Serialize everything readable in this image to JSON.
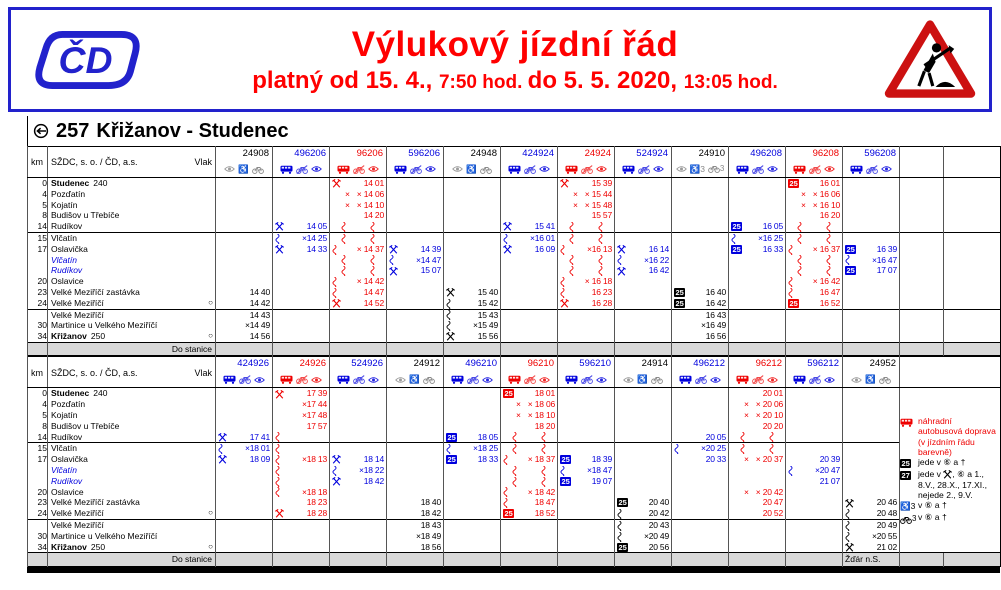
{
  "colors": {
    "black": "#000000",
    "blue": "#0000dd",
    "red": "#ee0000",
    "gray_icons": "#8a8a8a",
    "title_red": "#ff0000",
    "brand_blue": "#2222cc",
    "sign_red": "#cc1111"
  },
  "header": {
    "logo_text": "ČD",
    "title": "Výlukový jízdní řád",
    "validity": [
      {
        "text": "platný od 15. 4., ",
        "size": "lg"
      },
      {
        "text": "7:50 hod. ",
        "size": "sm"
      },
      {
        "text": "do 5. 5. 2020, ",
        "size": "lg"
      },
      {
        "text": "13:05 hod.",
        "size": "sm"
      }
    ]
  },
  "line": {
    "number": "257",
    "name": "Křižanov - Studenec"
  },
  "table_labels": {
    "operator": "SŽDC, s. o. / ČD, a.s.",
    "train": "Vlak",
    "km": "km",
    "to_station": "Do stanice"
  },
  "stations": [
    {
      "km": "0",
      "name": "Studenec",
      "suffix": "240",
      "bold": true
    },
    {
      "km": "4",
      "name": "Pozďatín"
    },
    {
      "km": "5",
      "name": "Kojatín"
    },
    {
      "km": "8",
      "name": "Budišov u Třebíče"
    },
    {
      "km": "14",
      "name": "Rudíkov",
      "sep_after": true
    },
    {
      "km": "15",
      "name": "Vlčatín"
    },
    {
      "km": "17",
      "name": "Oslavička"
    },
    {
      "km": "",
      "name": "Vlčatín",
      "italic": true
    },
    {
      "km": "",
      "name": "Rudíkov",
      "italic": true
    },
    {
      "km": "20",
      "name": "Oslavice"
    },
    {
      "km": "23",
      "name": "Velké Meziříčí zastávka"
    },
    {
      "km": "24",
      "name": "Velké Meziříčí",
      "circle": true,
      "sep_after": true
    },
    {
      "km": "",
      "name": "Velké Meziříčí"
    },
    {
      "km": "30",
      "name": "Martinice u Velkého Meziříčí"
    },
    {
      "km": "34",
      "name": "Křižanov",
      "suffix": "250",
      "bold": true,
      "circle": true
    }
  ],
  "sections": [
    {
      "trains": [
        {
          "num": "24908",
          "color": "black",
          "icons": [
            "eye",
            "wheelchair",
            "bike"
          ],
          "stops": [
            [
              10,
              "",
              "14 40"
            ],
            [
              11,
              "",
              "14 42"
            ],
            [
              12,
              "",
              "14 43"
            ],
            [
              13,
              "",
              "×14 49"
            ],
            [
              14,
              "",
              "14 56"
            ]
          ]
        },
        {
          "num": "496206",
          "color": "blue",
          "icons": [
            "bus",
            "no-bike",
            "eye"
          ],
          "stops": [
            [
              4,
              "H",
              "14 05"
            ],
            [
              5,
              "w",
              "×14 25"
            ],
            [
              6,
              "H",
              "14 33"
            ]
          ]
        },
        {
          "num": "96206",
          "color": "red",
          "icons": [
            "bus",
            "no-bike",
            "eye"
          ],
          "stops": [
            [
              0,
              "H",
              "14 01"
            ],
            [
              1,
              "x",
              "14 06"
            ],
            [
              2,
              "x",
              "14 10"
            ],
            [
              3,
              "",
              "14 20"
            ],
            [
              4,
              "W",
              ""
            ],
            [
              5,
              "W",
              ""
            ],
            [
              6,
              "wx",
              "14 37"
            ],
            [
              7,
              "W",
              ""
            ],
            [
              8,
              "W",
              ""
            ],
            [
              9,
              "wx",
              "14 42"
            ],
            [
              10,
              "w",
              "14 47"
            ],
            [
              11,
              "H",
              "14 52"
            ]
          ]
        },
        {
          "num": "596206",
          "color": "blue",
          "icons": [
            "bus",
            "no-bike",
            "eye"
          ],
          "stops": [
            [
              6,
              "H",
              "14 39"
            ],
            [
              7,
              "w",
              "×14 47"
            ],
            [
              8,
              "H",
              "15 07"
            ]
          ]
        },
        {
          "num": "24948",
          "color": "black",
          "icons": [
            "eye",
            "wheelchair",
            "bike"
          ],
          "stops": [
            [
              10,
              "H",
              "15 40"
            ],
            [
              11,
              "w",
              "15 42"
            ],
            [
              12,
              "w",
              "15 43"
            ],
            [
              13,
              "w",
              "×15 49"
            ],
            [
              14,
              "H",
              "15 56"
            ]
          ]
        },
        {
          "num": "424924",
          "color": "blue",
          "icons": [
            "bus",
            "no-bike",
            "eye"
          ],
          "stops": [
            [
              4,
              "H",
              "15 41"
            ],
            [
              5,
              "w",
              "×16 01"
            ],
            [
              6,
              "H",
              "16 09"
            ]
          ]
        },
        {
          "num": "24924",
          "color": "red",
          "icons": [
            "bus",
            "no-bike",
            "eye"
          ],
          "stops": [
            [
              0,
              "H",
              "15 39"
            ],
            [
              1,
              "x",
              "15 44"
            ],
            [
              2,
              "x",
              "15 48"
            ],
            [
              3,
              "",
              "15 57"
            ],
            [
              4,
              "W",
              ""
            ],
            [
              5,
              "W",
              ""
            ],
            [
              6,
              "w",
              "×16 13"
            ],
            [
              7,
              "W",
              ""
            ],
            [
              8,
              "W",
              ""
            ],
            [
              9,
              "wx",
              "16 18"
            ],
            [
              10,
              "w",
              "16 23"
            ],
            [
              11,
              "H",
              "16 28"
            ]
          ]
        },
        {
          "num": "524924",
          "color": "blue",
          "icons": [
            "bus",
            "no-bike",
            "eye"
          ],
          "stops": [
            [
              6,
              "H",
              "16 14"
            ],
            [
              7,
              "w",
              "×16 22"
            ],
            [
              8,
              "H",
              "16 42"
            ]
          ]
        },
        {
          "num": "24910",
          "color": "black",
          "icons": [
            "eye",
            "wheelchair-3",
            "bike-3"
          ],
          "stops": [
            [
              10,
              "25",
              "16 40"
            ],
            [
              11,
              "25",
              "16 42"
            ],
            [
              12,
              "",
              "16 43"
            ],
            [
              13,
              "",
              "×16 49"
            ],
            [
              14,
              "",
              "16 56"
            ]
          ]
        },
        {
          "num": "496208",
          "color": "blue",
          "icons": [
            "bus",
            "no-bike",
            "eye"
          ],
          "stops": [
            [
              4,
              "25",
              "16 05"
            ],
            [
              5,
              "w",
              "×16 25"
            ],
            [
              6,
              "25",
              "16 33"
            ]
          ]
        },
        {
          "num": "96208",
          "color": "red",
          "icons": [
            "bus",
            "no-bike",
            "eye"
          ],
          "stops": [
            [
              0,
              "25",
              "16 01"
            ],
            [
              1,
              "x",
              "16 06"
            ],
            [
              2,
              "x",
              "16 10"
            ],
            [
              3,
              "",
              "16 20"
            ],
            [
              4,
              "W",
              ""
            ],
            [
              5,
              "W",
              ""
            ],
            [
              6,
              "wx",
              "16 37"
            ],
            [
              7,
              "W",
              ""
            ],
            [
              8,
              "W",
              ""
            ],
            [
              9,
              "wx",
              "16 42"
            ],
            [
              10,
              "w",
              "16 47"
            ],
            [
              11,
              "25",
              "16 52"
            ]
          ]
        },
        {
          "num": "596208",
          "color": "blue",
          "icons": [
            "bus",
            "no-bike",
            "eye"
          ],
          "stops": [
            [
              6,
              "25",
              "16 39"
            ],
            [
              7,
              "w",
              "×16 47"
            ],
            [
              8,
              "25",
              "17 07"
            ]
          ]
        }
      ]
    },
    {
      "trains": [
        {
          "num": "424926",
          "color": "blue",
          "icons": [
            "bus",
            "no-bike",
            "eye"
          ],
          "stops": [
            [
              4,
              "H",
              "17 41"
            ],
            [
              5,
              "w",
              "×18 01"
            ],
            [
              6,
              "H",
              "18 09"
            ]
          ]
        },
        {
          "num": "24926",
          "color": "red",
          "icons": [
            "bus",
            "no-bike",
            "eye"
          ],
          "stops": [
            [
              0,
              "H",
              "17 39"
            ],
            [
              1,
              "",
              "×17 44"
            ],
            [
              2,
              "",
              "×17 48"
            ],
            [
              3,
              "",
              "17 57"
            ],
            [
              4,
              "w",
              ""
            ],
            [
              5,
              "w",
              ""
            ],
            [
              6,
              "w",
              "×18 13"
            ],
            [
              7,
              "w",
              ""
            ],
            [
              8,
              "w",
              ""
            ],
            [
              9,
              "w",
              "×18 18"
            ],
            [
              10,
              "",
              "18 23"
            ],
            [
              11,
              "H",
              "18 28"
            ]
          ]
        },
        {
          "num": "524926",
          "color": "blue",
          "icons": [
            "bus",
            "no-bike",
            "eye"
          ],
          "stops": [
            [
              6,
              "H",
              "18 14"
            ],
            [
              7,
              "w",
              "×18 22"
            ],
            [
              8,
              "H",
              "18 42"
            ]
          ]
        },
        {
          "num": "24912",
          "color": "black",
          "icons": [
            "eye",
            "wheelchair",
            "bike"
          ],
          "stops": [
            [
              10,
              "",
              "18 40"
            ],
            [
              11,
              "",
              "18 42"
            ],
            [
              12,
              "",
              "18 43"
            ],
            [
              13,
              "",
              "×18 49"
            ],
            [
              14,
              "",
              "18 56"
            ]
          ]
        },
        {
          "num": "496210",
          "color": "blue",
          "icons": [
            "bus",
            "no-bike",
            "eye"
          ],
          "stops": [
            [
              4,
              "25",
              "18 05"
            ],
            [
              5,
              "w",
              "×18 25"
            ],
            [
              6,
              "25",
              "18 33"
            ]
          ]
        },
        {
          "num": "96210",
          "color": "red",
          "icons": [
            "bus",
            "no-bike",
            "eye"
          ],
          "stops": [
            [
              0,
              "25",
              "18 01"
            ],
            [
              1,
              "x",
              "18 06"
            ],
            [
              2,
              "x",
              "18 10"
            ],
            [
              3,
              "",
              "18 20"
            ],
            [
              4,
              "W",
              ""
            ],
            [
              5,
              "W",
              ""
            ],
            [
              6,
              "wx",
              "18 37"
            ],
            [
              7,
              "W",
              ""
            ],
            [
              8,
              "W",
              ""
            ],
            [
              9,
              "wx",
              "18 42"
            ],
            [
              10,
              "w",
              "18 47"
            ],
            [
              11,
              "25",
              "18 52"
            ]
          ]
        },
        {
          "num": "596210",
          "color": "blue",
          "icons": [
            "bus",
            "no-bike",
            "eye"
          ],
          "stops": [
            [
              6,
              "25",
              "18 39"
            ],
            [
              7,
              "w",
              "×18 47"
            ],
            [
              8,
              "25",
              "19 07"
            ]
          ]
        },
        {
          "num": "24914",
          "color": "black",
          "icons": [
            "eye",
            "wheelchair",
            "bike"
          ],
          "stops": [
            [
              10,
              "25",
              "20 40"
            ],
            [
              11,
              "w",
              "20 42"
            ],
            [
              12,
              "w",
              "20 43"
            ],
            [
              13,
              "w",
              "×20 49"
            ],
            [
              14,
              "25",
              "20 56"
            ]
          ]
        },
        {
          "num": "496212",
          "color": "blue",
          "icons": [
            "bus",
            "no-bike",
            "eye"
          ],
          "stops": [
            [
              4,
              "",
              "20 05"
            ],
            [
              5,
              "w",
              "×20 25"
            ],
            [
              6,
              "",
              "20 33"
            ]
          ]
        },
        {
          "num": "96212",
          "color": "red",
          "icons": [
            "bus",
            "no-bike",
            "eye"
          ],
          "stops": [
            [
              0,
              "",
              "20 01"
            ],
            [
              1,
              "x",
              "20 06"
            ],
            [
              2,
              "x",
              "20 10"
            ],
            [
              3,
              "",
              "20 20"
            ],
            [
              4,
              "W",
              ""
            ],
            [
              5,
              "W",
              ""
            ],
            [
              6,
              "x",
              "20 37"
            ],
            [
              9,
              "x",
              "20 42"
            ],
            [
              10,
              "",
              "20 47"
            ],
            [
              11,
              "",
              "20 52"
            ]
          ]
        },
        {
          "num": "596212",
          "color": "blue",
          "icons": [
            "bus",
            "no-bike",
            "eye"
          ],
          "stops": [
            [
              6,
              "",
              "20 39"
            ],
            [
              7,
              "w",
              "×20 47"
            ],
            [
              8,
              "",
              "21 07"
            ]
          ]
        },
        {
          "num": "24952",
          "color": "black",
          "icons": [
            "eye",
            "wheelchair",
            "bike"
          ],
          "dest": "Žďár n.S.",
          "stops": [
            [
              10,
              "H",
              "20 46"
            ],
            [
              11,
              "w",
              "20 48"
            ],
            [
              12,
              "w",
              "20 49"
            ],
            [
              13,
              "w",
              "×20 55"
            ],
            [
              14,
              "H",
              "21 02"
            ]
          ]
        }
      ],
      "has_legend": true
    }
  ],
  "legend": {
    "items": [
      {
        "icon": "bus",
        "color": "red",
        "parts": [
          {
            "t": "náhradní autobusová doprava (v jízdním řádu barevně)"
          }
        ]
      },
      {
        "icon": "box25",
        "parts": [
          {
            "t": "jede v ⑥ a †"
          }
        ]
      },
      {
        "icon": "box27",
        "parts": [
          {
            "t": "jede v "
          },
          {
            "i": "hammers"
          },
          {
            "t": ", ⑥ a 1., 8.V., 28.X., 17.XI., nejede 2., 9.V."
          }
        ]
      },
      {
        "icon": "wheelchair-3",
        "parts": [
          {
            "t": "v ⑥ a †"
          }
        ]
      },
      {
        "icon": "bike-3",
        "parts": [
          {
            "t": "v ⑥ a †"
          }
        ]
      }
    ]
  }
}
